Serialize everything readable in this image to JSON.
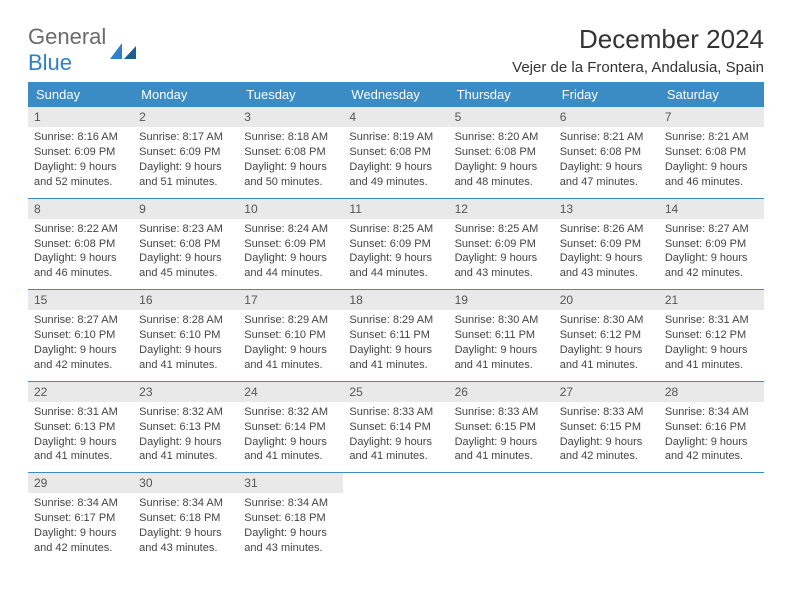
{
  "logo": {
    "text1": "General",
    "text2": "Blue"
  },
  "title": "December 2024",
  "location": "Vejer de la Frontera, Andalusia, Spain",
  "colors": {
    "header_bg": "#3b8bc4",
    "header_text": "#ffffff",
    "daynum_bg": "#e9e9e9",
    "border": "#3b8bc4",
    "body_text": "#444444",
    "logo_gray": "#6b6b6b",
    "logo_blue": "#2f80c6"
  },
  "weekdays": [
    "Sunday",
    "Monday",
    "Tuesday",
    "Wednesday",
    "Thursday",
    "Friday",
    "Saturday"
  ],
  "weeks": [
    [
      {
        "n": "1",
        "sr": "Sunrise: 8:16 AM",
        "ss": "Sunset: 6:09 PM",
        "dl": "Daylight: 9 hours and 52 minutes."
      },
      {
        "n": "2",
        "sr": "Sunrise: 8:17 AM",
        "ss": "Sunset: 6:09 PM",
        "dl": "Daylight: 9 hours and 51 minutes."
      },
      {
        "n": "3",
        "sr": "Sunrise: 8:18 AM",
        "ss": "Sunset: 6:08 PM",
        "dl": "Daylight: 9 hours and 50 minutes."
      },
      {
        "n": "4",
        "sr": "Sunrise: 8:19 AM",
        "ss": "Sunset: 6:08 PM",
        "dl": "Daylight: 9 hours and 49 minutes."
      },
      {
        "n": "5",
        "sr": "Sunrise: 8:20 AM",
        "ss": "Sunset: 6:08 PM",
        "dl": "Daylight: 9 hours and 48 minutes."
      },
      {
        "n": "6",
        "sr": "Sunrise: 8:21 AM",
        "ss": "Sunset: 6:08 PM",
        "dl": "Daylight: 9 hours and 47 minutes."
      },
      {
        "n": "7",
        "sr": "Sunrise: 8:21 AM",
        "ss": "Sunset: 6:08 PM",
        "dl": "Daylight: 9 hours and 46 minutes."
      }
    ],
    [
      {
        "n": "8",
        "sr": "Sunrise: 8:22 AM",
        "ss": "Sunset: 6:08 PM",
        "dl": "Daylight: 9 hours and 46 minutes."
      },
      {
        "n": "9",
        "sr": "Sunrise: 8:23 AM",
        "ss": "Sunset: 6:08 PM",
        "dl": "Daylight: 9 hours and 45 minutes."
      },
      {
        "n": "10",
        "sr": "Sunrise: 8:24 AM",
        "ss": "Sunset: 6:09 PM",
        "dl": "Daylight: 9 hours and 44 minutes."
      },
      {
        "n": "11",
        "sr": "Sunrise: 8:25 AM",
        "ss": "Sunset: 6:09 PM",
        "dl": "Daylight: 9 hours and 44 minutes."
      },
      {
        "n": "12",
        "sr": "Sunrise: 8:25 AM",
        "ss": "Sunset: 6:09 PM",
        "dl": "Daylight: 9 hours and 43 minutes."
      },
      {
        "n": "13",
        "sr": "Sunrise: 8:26 AM",
        "ss": "Sunset: 6:09 PM",
        "dl": "Daylight: 9 hours and 43 minutes."
      },
      {
        "n": "14",
        "sr": "Sunrise: 8:27 AM",
        "ss": "Sunset: 6:09 PM",
        "dl": "Daylight: 9 hours and 42 minutes."
      }
    ],
    [
      {
        "n": "15",
        "sr": "Sunrise: 8:27 AM",
        "ss": "Sunset: 6:10 PM",
        "dl": "Daylight: 9 hours and 42 minutes."
      },
      {
        "n": "16",
        "sr": "Sunrise: 8:28 AM",
        "ss": "Sunset: 6:10 PM",
        "dl": "Daylight: 9 hours and 41 minutes."
      },
      {
        "n": "17",
        "sr": "Sunrise: 8:29 AM",
        "ss": "Sunset: 6:10 PM",
        "dl": "Daylight: 9 hours and 41 minutes."
      },
      {
        "n": "18",
        "sr": "Sunrise: 8:29 AM",
        "ss": "Sunset: 6:11 PM",
        "dl": "Daylight: 9 hours and 41 minutes."
      },
      {
        "n": "19",
        "sr": "Sunrise: 8:30 AM",
        "ss": "Sunset: 6:11 PM",
        "dl": "Daylight: 9 hours and 41 minutes."
      },
      {
        "n": "20",
        "sr": "Sunrise: 8:30 AM",
        "ss": "Sunset: 6:12 PM",
        "dl": "Daylight: 9 hours and 41 minutes."
      },
      {
        "n": "21",
        "sr": "Sunrise: 8:31 AM",
        "ss": "Sunset: 6:12 PM",
        "dl": "Daylight: 9 hours and 41 minutes."
      }
    ],
    [
      {
        "n": "22",
        "sr": "Sunrise: 8:31 AM",
        "ss": "Sunset: 6:13 PM",
        "dl": "Daylight: 9 hours and 41 minutes."
      },
      {
        "n": "23",
        "sr": "Sunrise: 8:32 AM",
        "ss": "Sunset: 6:13 PM",
        "dl": "Daylight: 9 hours and 41 minutes."
      },
      {
        "n": "24",
        "sr": "Sunrise: 8:32 AM",
        "ss": "Sunset: 6:14 PM",
        "dl": "Daylight: 9 hours and 41 minutes."
      },
      {
        "n": "25",
        "sr": "Sunrise: 8:33 AM",
        "ss": "Sunset: 6:14 PM",
        "dl": "Daylight: 9 hours and 41 minutes."
      },
      {
        "n": "26",
        "sr": "Sunrise: 8:33 AM",
        "ss": "Sunset: 6:15 PM",
        "dl": "Daylight: 9 hours and 41 minutes."
      },
      {
        "n": "27",
        "sr": "Sunrise: 8:33 AM",
        "ss": "Sunset: 6:15 PM",
        "dl": "Daylight: 9 hours and 42 minutes."
      },
      {
        "n": "28",
        "sr": "Sunrise: 8:34 AM",
        "ss": "Sunset: 6:16 PM",
        "dl": "Daylight: 9 hours and 42 minutes."
      }
    ],
    [
      {
        "n": "29",
        "sr": "Sunrise: 8:34 AM",
        "ss": "Sunset: 6:17 PM",
        "dl": "Daylight: 9 hours and 42 minutes."
      },
      {
        "n": "30",
        "sr": "Sunrise: 8:34 AM",
        "ss": "Sunset: 6:18 PM",
        "dl": "Daylight: 9 hours and 43 minutes."
      },
      {
        "n": "31",
        "sr": "Sunrise: 8:34 AM",
        "ss": "Sunset: 6:18 PM",
        "dl": "Daylight: 9 hours and 43 minutes."
      },
      null,
      null,
      null,
      null
    ]
  ]
}
